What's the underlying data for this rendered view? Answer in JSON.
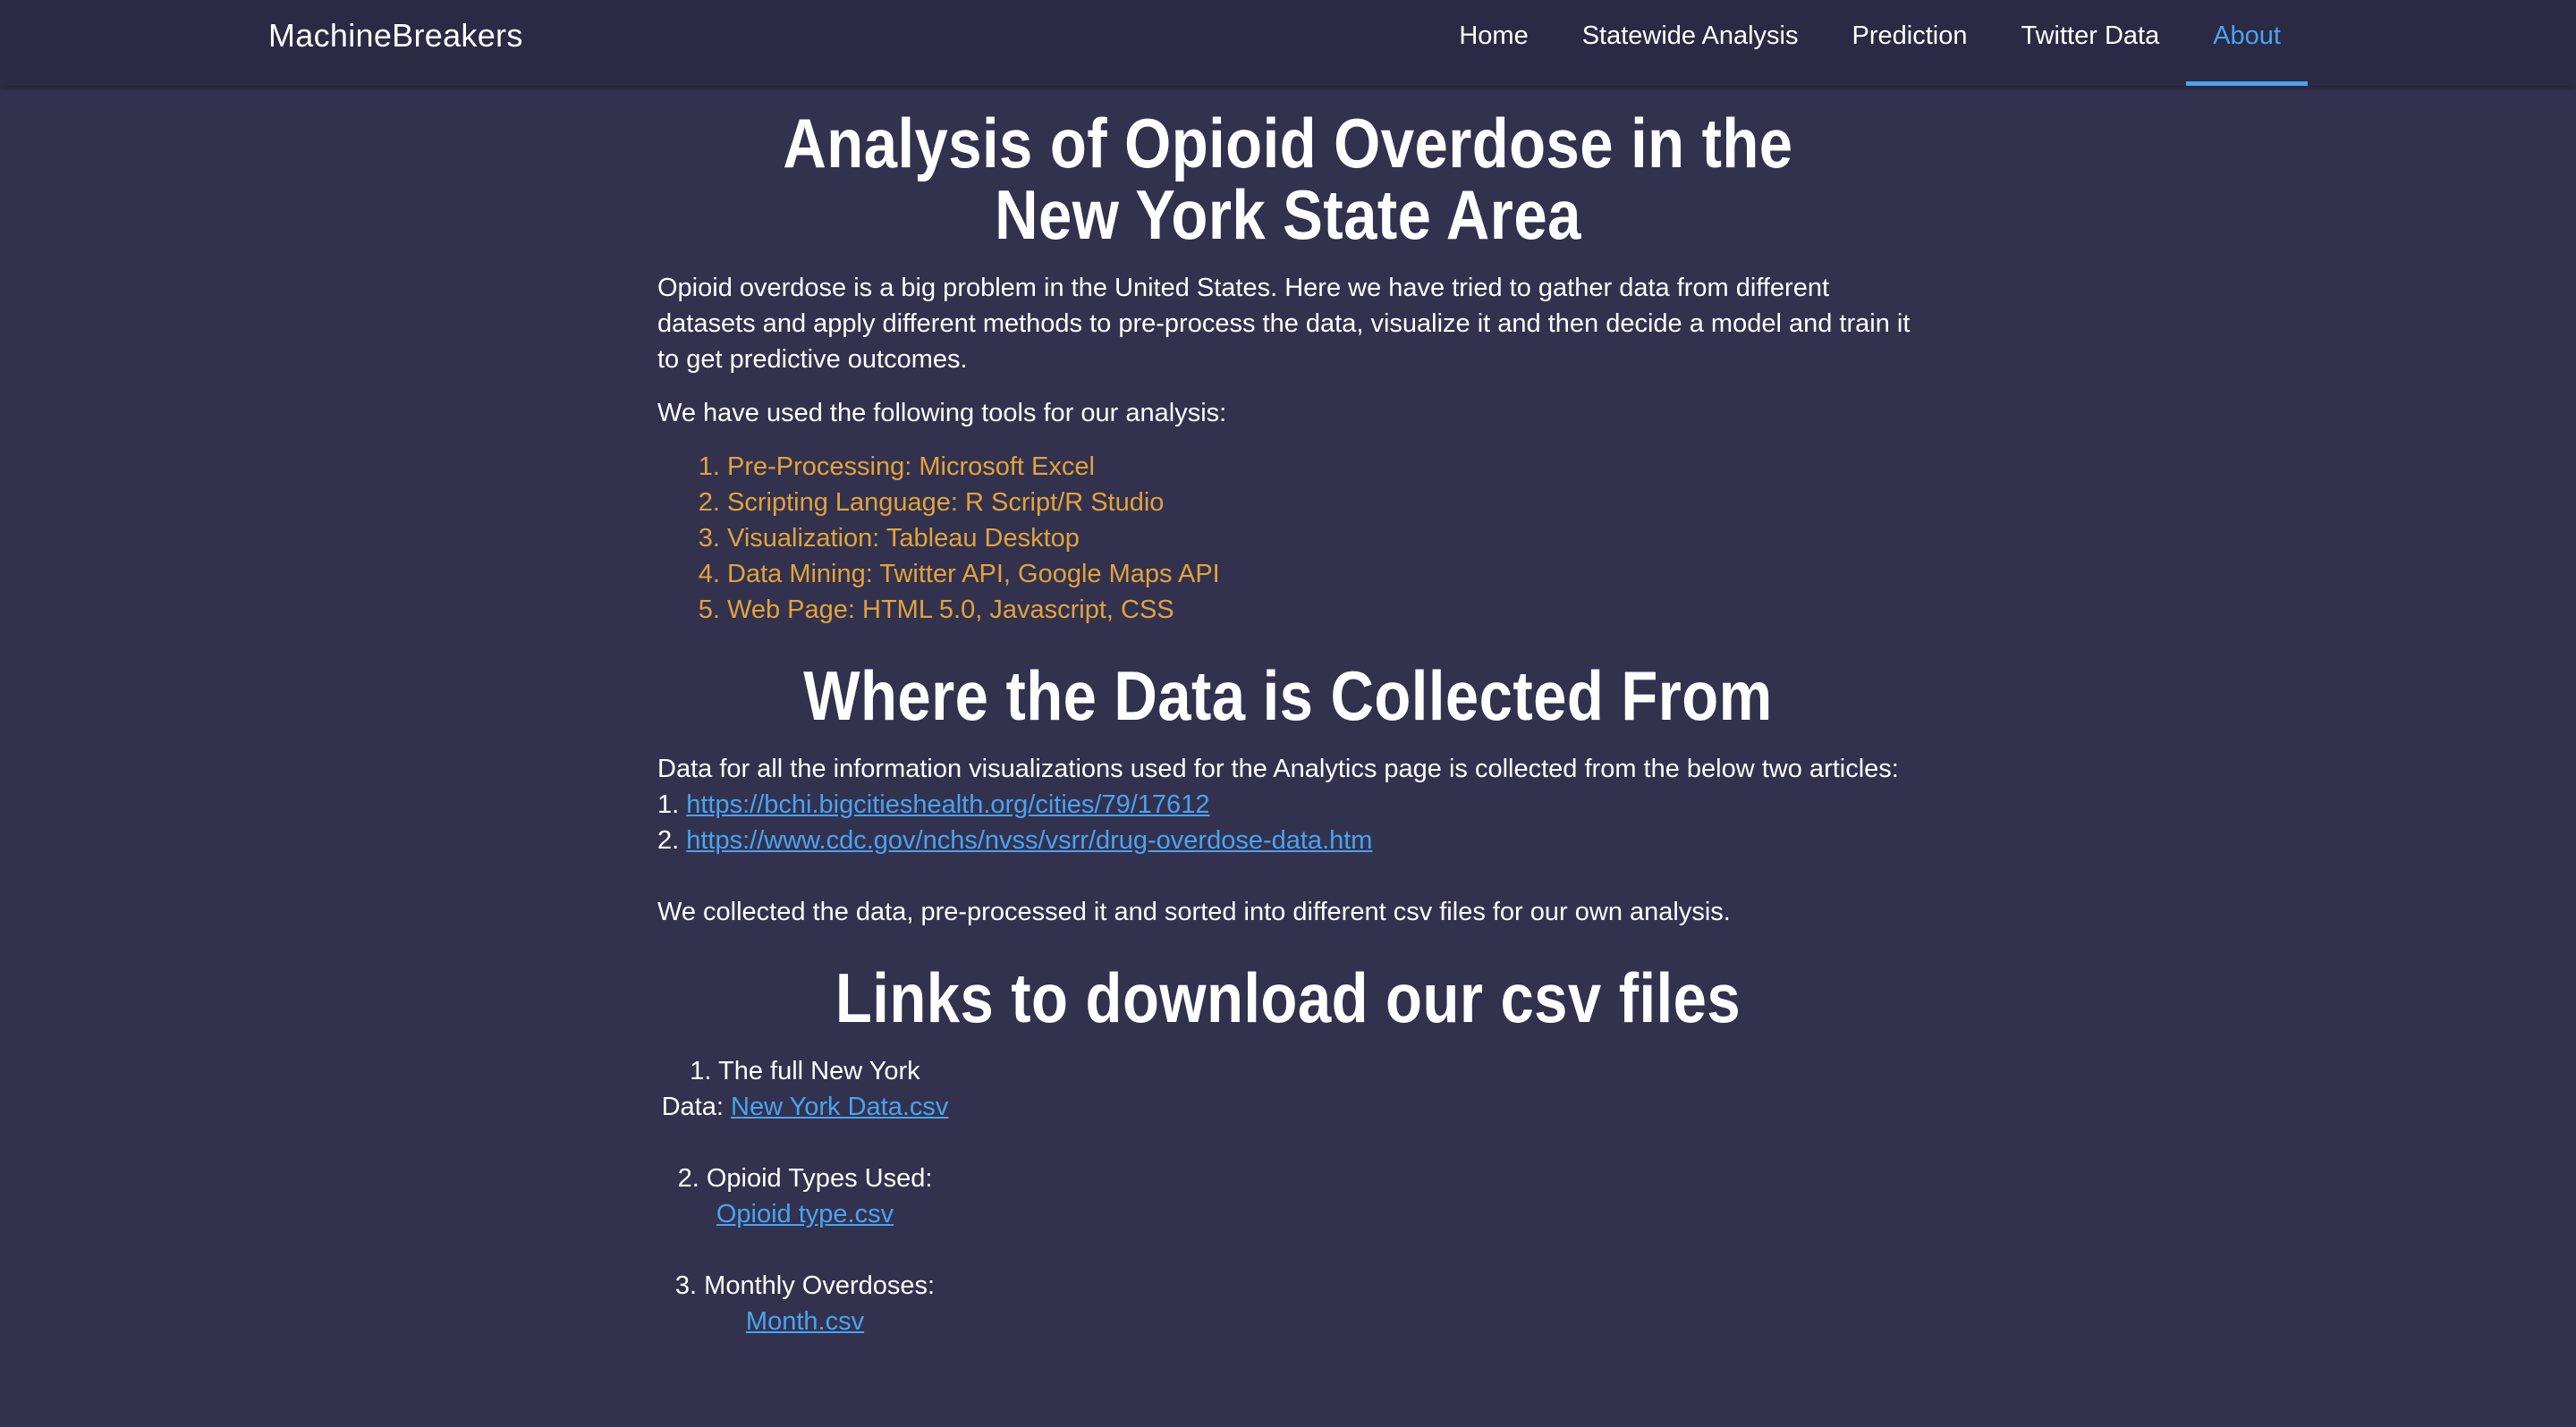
{
  "navbar": {
    "brand": "MachineBreakers",
    "items": [
      {
        "label": "Home",
        "active": false
      },
      {
        "label": "Statewide Analysis",
        "active": false
      },
      {
        "label": "Prediction",
        "active": false
      },
      {
        "label": "Twitter Data",
        "active": false
      },
      {
        "label": "About",
        "active": true
      }
    ]
  },
  "colors": {
    "background": "#32324f",
    "navbar": "#2a2a44",
    "accent": "#4aa3f0",
    "list_text": "#e3a23a"
  },
  "main": {
    "title": "Analysis of Opioid Overdose in the New York State Area",
    "intro": "Opioid overdose is a big problem in the United States. Here we have tried to gather data from different datasets and apply different methods to pre-process the data, visualize it and then decide a model and train it to get predictive outcomes.",
    "tools_intro": "We have used the following tools for our analysis:",
    "tools": [
      "Pre-Processing: Microsoft Excel",
      "Scripting Language: R Script/R Studio",
      "Visualization: Tableau Desktop",
      "Data Mining: Twitter API, Google Maps API",
      "Web Page: HTML 5.0, Javascript, CSS"
    ],
    "sources_heading": "Where the Data is Collected From",
    "sources_intro": "Data for all the information visualizations used for the Analytics page is collected from the below two articles:",
    "sources": [
      {
        "prefix": "1. ",
        "url": "https://bchi.bigcitieshealth.org/cities/79/17612"
      },
      {
        "prefix": "2. ",
        "url": "https://www.cdc.gov/nchs/nvss/vsrr/drug-overdose-data.htm"
      }
    ],
    "sources_outro": "We collected the data, pre-processed it and sorted into different csv files for our own analysis.",
    "downloads_heading": "Links to download our csv files",
    "downloads": [
      {
        "label": "1. The full New York Data:",
        "link": "New York Data.csv"
      },
      {
        "label": "2. Opioid Types Used:",
        "link": "Opioid type.csv"
      },
      {
        "label": "3. Monthly Overdoses:",
        "link": "Month.csv"
      }
    ]
  }
}
